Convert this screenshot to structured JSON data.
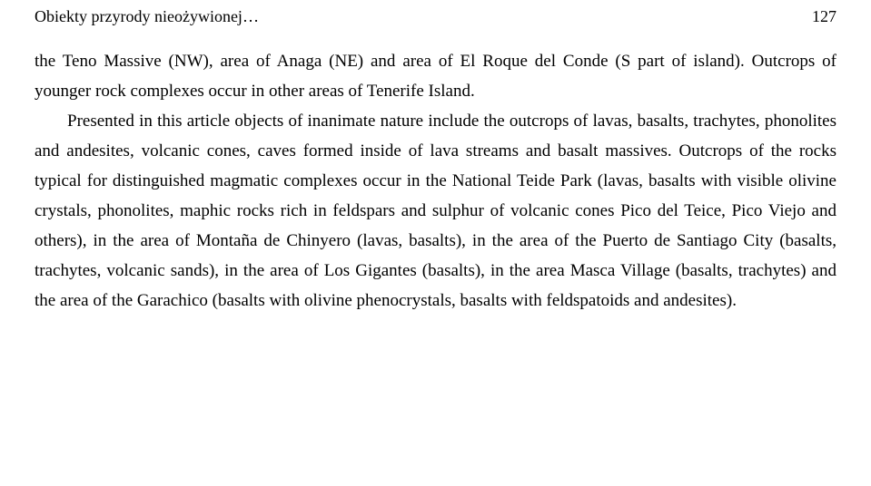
{
  "header": {
    "running_title": "Obiekty przyrody nieożywionej…",
    "page_number": "127"
  },
  "body": {
    "p1": "the Teno Massive (NW), area of Anaga (NE) and area of El Roque del Conde (S part of island). Outcrops of younger rock complexes occur in other areas of Tenerife Island.",
    "p2": "Presented in this article objects of inanimate nature include the outcrops of lavas, basalts, trachytes, phonolites and andesites, volcanic cones, caves formed inside of lava streams and basalt massives. Outcrops of the rocks typical for distinguished magmatic complexes occur in the National Teide Park (lavas, basalts with visible olivine crystals, phonolites, maphic rocks rich in feldspars and sulphur of volcanic cones Pico del Teice, Pico Viejo and others), in the area of Montaña de Chinyero (lavas, basalts), in the area of the Puerto de Santiago City (basalts, trachytes, volcanic sands), in the area of Los Gigantes (basalts), in the area Masca Village (basalts, trachytes) and the area of the Garachico (basalts with olivine phenocrystals, basalts with feldspatoids and andesites)."
  }
}
